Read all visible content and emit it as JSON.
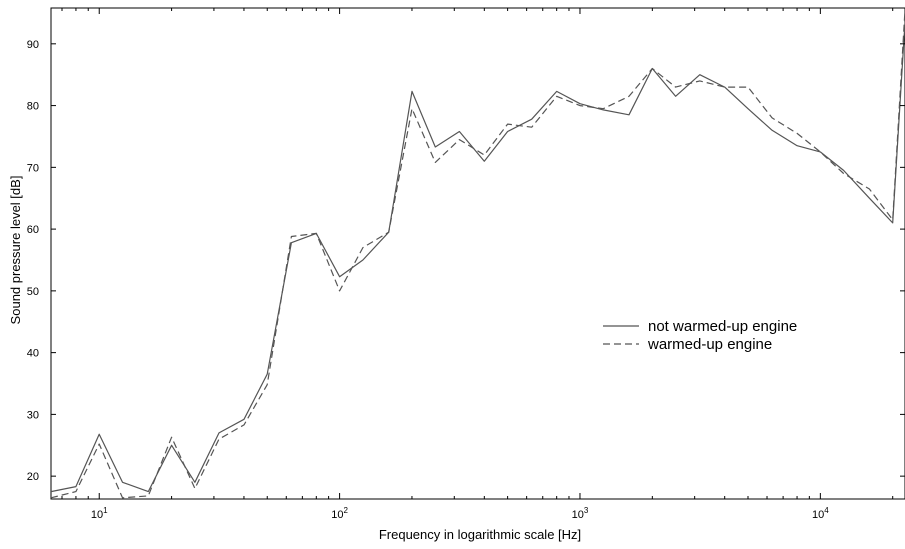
{
  "chart_data": {
    "type": "line",
    "xlabel": "Frequency in logarithmic scale [Hz]",
    "ylabel": "Sound pressure level [dB]",
    "x_scale": "log",
    "xlim": [
      6.3,
      22500
    ],
    "ylim": [
      16.3,
      95.8
    ],
    "grid": false,
    "legend_position": "center-right",
    "x_ticks": [
      {
        "value": 10,
        "base": "10",
        "exp": "1"
      },
      {
        "value": 100,
        "base": "10",
        "exp": "2"
      },
      {
        "value": 1000,
        "base": "10",
        "exp": "3"
      },
      {
        "value": 10000,
        "base": "10",
        "exp": "4"
      }
    ],
    "y_ticks": [
      20,
      30,
      40,
      50,
      60,
      70,
      80,
      90
    ],
    "x": [
      6.3,
      8,
      10,
      12.5,
      16,
      20,
      25,
      31.5,
      40,
      50,
      63,
      80,
      100,
      125,
      160,
      200,
      250,
      315,
      400,
      500,
      630,
      800,
      1000,
      1250,
      1600,
      2000,
      2500,
      3150,
      4000,
      5000,
      6300,
      8000,
      10000,
      12500,
      16000,
      20000,
      22500
    ],
    "series": [
      {
        "name": "not warmed-up engine",
        "style": "solid",
        "values": [
          17.5,
          18.3,
          26.8,
          19.0,
          17.5,
          25.0,
          19.0,
          27.0,
          29.2,
          36.5,
          57.8,
          59.3,
          52.3,
          55.0,
          59.5,
          82.3,
          73.3,
          75.8,
          71.0,
          75.8,
          77.8,
          82.3,
          80.3,
          79.3,
          78.5,
          86.0,
          81.5,
          85.0,
          83.0,
          79.5,
          76.0,
          73.5,
          72.5,
          69.5,
          65.0,
          61.0,
          93.5
        ]
      },
      {
        "name": "warmed-up engine",
        "style": "dashed",
        "values": [
          16.5,
          17.5,
          25.2,
          16.5,
          16.8,
          26.3,
          18.0,
          26.0,
          28.3,
          34.8,
          58.8,
          59.3,
          50.0,
          57.0,
          59.5,
          79.5,
          70.8,
          74.5,
          72.0,
          77.0,
          76.5,
          81.5,
          80.0,
          79.5,
          81.5,
          86.0,
          83.0,
          84.0,
          83.0,
          83.0,
          78.0,
          75.5,
          72.5,
          69.0,
          66.5,
          61.5,
          95.5
        ]
      }
    ]
  }
}
